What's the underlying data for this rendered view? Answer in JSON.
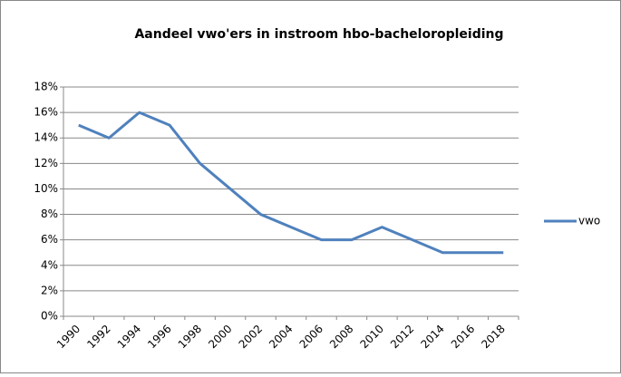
{
  "chart_data": {
    "type": "line",
    "title": "Aandeel vwo'ers in instroom hbo-bacheloropleiding",
    "categories": [
      "1990",
      "1992",
      "1994",
      "1996",
      "1998",
      "2000",
      "2002",
      "2004",
      "2006",
      "2008",
      "2010",
      "2012",
      "2014",
      "2016",
      "2018"
    ],
    "series": [
      {
        "name": "vwo",
        "color": "#4f81bd",
        "values": [
          15,
          14,
          16,
          15,
          12,
          10,
          8,
          7,
          6,
          6,
          7,
          6,
          5,
          5,
          5
        ]
      }
    ],
    "ylim": [
      0,
      18
    ],
    "yticks": [
      {
        "value": 0,
        "label": "0%"
      },
      {
        "value": 2,
        "label": "2%"
      },
      {
        "value": 4,
        "label": "4%"
      },
      {
        "value": 6,
        "label": "6%"
      },
      {
        "value": 8,
        "label": "8%"
      },
      {
        "value": 10,
        "label": "10%"
      },
      {
        "value": 12,
        "label": "12%"
      },
      {
        "value": 14,
        "label": "14%"
      },
      {
        "value": 16,
        "label": "16%"
      },
      {
        "value": 18,
        "label": "18%"
      }
    ],
    "grid": true,
    "legend": "right"
  }
}
